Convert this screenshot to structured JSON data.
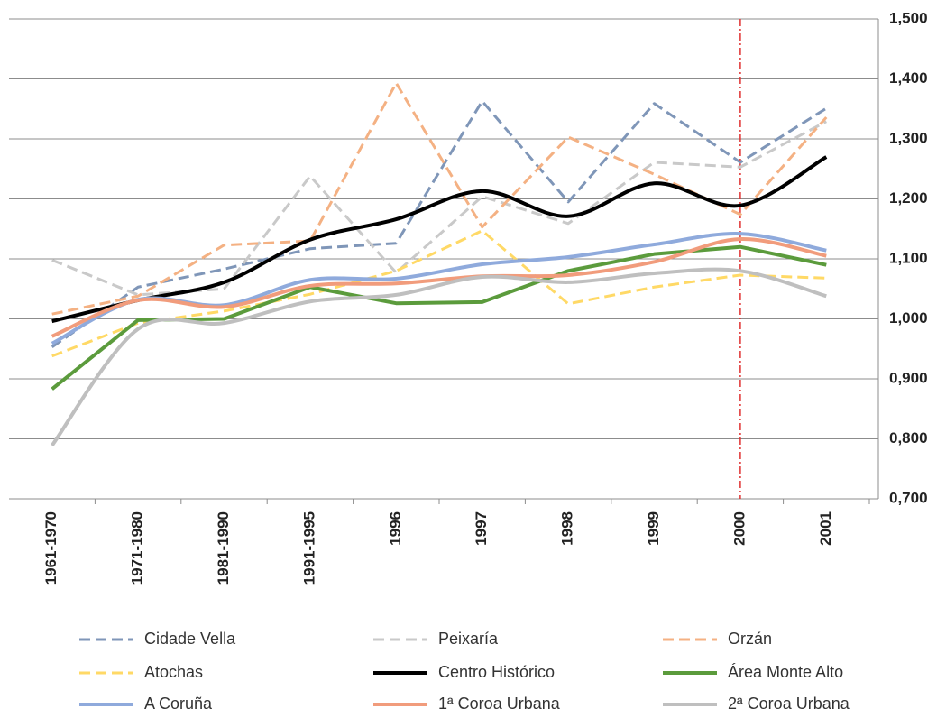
{
  "chart_data": {
    "type": "line",
    "categories": [
      "1961-1970",
      "1971-1980",
      "1981-1990",
      "1991-1995",
      "1996",
      "1997",
      "1998",
      "1999",
      "2000",
      "2001"
    ],
    "series": [
      {
        "name": "Cidade Vella",
        "color": "#7f96b8",
        "dash": true,
        "smooth": false,
        "values": [
          0.953,
          1.053,
          1.083,
          1.117,
          1.126,
          1.363,
          1.195,
          1.359,
          1.261,
          1.351
        ]
      },
      {
        "name": "Peixaría",
        "color": "#c9c9c9",
        "dash": true,
        "smooth": false,
        "values": [
          1.098,
          1.04,
          1.05,
          1.238,
          1.077,
          1.204,
          1.159,
          1.261,
          1.253,
          1.329
        ]
      },
      {
        "name": "Orzán",
        "color": "#f4b183",
        "dash": true,
        "smooth": false,
        "values": [
          1.008,
          1.038,
          1.123,
          1.13,
          1.393,
          1.153,
          1.303,
          1.241,
          1.174,
          1.336
        ]
      },
      {
        "name": "Atochas",
        "color": "#ffd966",
        "dash": true,
        "smooth": false,
        "values": [
          0.938,
          0.993,
          1.013,
          1.041,
          1.08,
          1.147,
          1.025,
          1.053,
          1.073,
          1.068
        ]
      },
      {
        "name": "Centro Histórico",
        "color": "#000000",
        "dash": false,
        "smooth": true,
        "values": [
          0.996,
          1.031,
          1.061,
          1.132,
          1.166,
          1.213,
          1.171,
          1.226,
          1.189,
          1.27
        ]
      },
      {
        "name": "Área Monte Alto",
        "color": "#5b9b3c",
        "dash": false,
        "smooth": false,
        "values": [
          0.883,
          0.998,
          1.0,
          1.053,
          1.026,
          1.028,
          1.08,
          1.108,
          1.12,
          1.09
        ]
      },
      {
        "name": "A Coruña",
        "color": "#8faadc",
        "dash": false,
        "smooth": true,
        "values": [
          0.959,
          1.032,
          1.023,
          1.065,
          1.067,
          1.091,
          1.103,
          1.124,
          1.142,
          1.114
        ]
      },
      {
        "name": "1ª Coroa Urbana",
        "color": "#f19c7c",
        "dash": false,
        "smooth": true,
        "values": [
          0.971,
          1.031,
          1.02,
          1.055,
          1.059,
          1.071,
          1.073,
          1.095,
          1.133,
          1.105
        ]
      },
      {
        "name": "2ª Coroa Urbana",
        "color": "#bfbfbf",
        "dash": false,
        "smooth": true,
        "values": [
          0.789,
          0.983,
          0.993,
          1.029,
          1.04,
          1.07,
          1.061,
          1.076,
          1.08,
          1.038
        ]
      }
    ],
    "ylim": [
      0.7,
      1.5
    ],
    "yticks": [
      {
        "value": 0.7,
        "label": "0,700"
      },
      {
        "value": 0.8,
        "label": "0,800"
      },
      {
        "value": 0.9,
        "label": "0,900"
      },
      {
        "value": 1.0,
        "label": "1,000"
      },
      {
        "value": 1.1,
        "label": "1,100"
      },
      {
        "value": 1.2,
        "label": "1,200"
      },
      {
        "value": 1.3,
        "label": "1,300"
      },
      {
        "value": 1.4,
        "label": "1,400"
      },
      {
        "value": 1.5,
        "label": "1,500"
      }
    ],
    "grid": true,
    "y_axis_side": "right",
    "legend": "bottom",
    "vline": {
      "x": "2000",
      "color": "#e03030"
    }
  }
}
